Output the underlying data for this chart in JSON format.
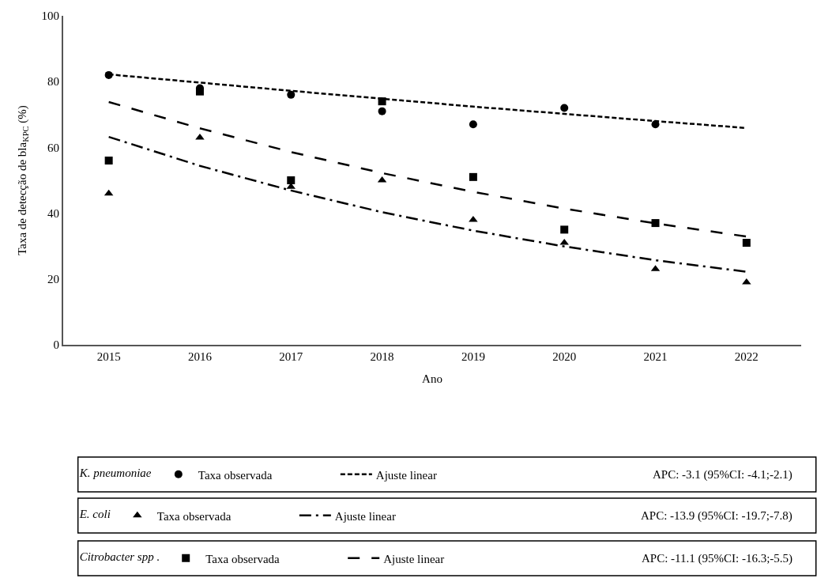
{
  "chart_data": {
    "type": "scatter",
    "ylabel": "Taxa de detecção de bla$_{KPC}$ (%)",
    "xlabel": "Ano",
    "x": [
      2015,
      2016,
      2017,
      2018,
      2019,
      2020,
      2021,
      2022
    ],
    "xlim": [
      2014.5,
      2022.6
    ],
    "xticks": [
      2015,
      2016,
      2017,
      2018,
      2019,
      2020,
      2021,
      2022
    ],
    "ylim": [
      0,
      100
    ],
    "yticks": [
      0,
      20,
      40,
      60,
      80,
      100
    ],
    "legend": "bottom",
    "series": [
      {
        "name": "Taxa observada",
        "marker": "circle",
        "color": "#000000",
        "values": [
          82,
          78,
          76,
          71,
          67,
          72,
          67,
          null
        ]
      },
      {
        "name": "Ajuste linear",
        "type": "line",
        "marker": "none",
        "line_style": "dashed",
        "color": "#000000",
        "values": [
          82.2,
          79.7,
          77.2,
          74.8,
          72.4,
          70.2,
          68.0,
          65.9
        ]
      },
      {
        "name": "Taxa observada",
        "marker": "triangle",
        "color": "#000000",
        "values": [
          46,
          63,
          48,
          50,
          38,
          31,
          23,
          19
        ]
      },
      {
        "name": "Ajuste linear",
        "type": "line",
        "marker": "none",
        "line_style": "dashdot",
        "color": "#000000",
        "values": [
          63.2,
          54.4,
          46.9,
          40.3,
          34.7,
          29.9,
          25.7,
          22.2
        ]
      },
      {
        "name": "Taxa observada",
        "marker": "square",
        "color": "#000000",
        "values": [
          56,
          77,
          50,
          74,
          51,
          35,
          37,
          31
        ]
      },
      {
        "name": "Ajuste linear",
        "type": "line",
        "marker": "none",
        "line_style": "longdash",
        "color": "#000000",
        "values": [
          73.8,
          65.8,
          58.6,
          52.2,
          46.5,
          41.4,
          36.9,
          32.9
        ]
      }
    ],
    "annotations": [
      "K. pneumoniae",
      "APC: -3.1 (95%CI: -4.1;-2.1)",
      "E. coli",
      "APC: -13.9 (95%CI: -19.7;-7.8)",
      "Citrobacter spp .",
      "APC: -11.1 (95%CI: -16.3;-5.5)"
    ]
  }
}
